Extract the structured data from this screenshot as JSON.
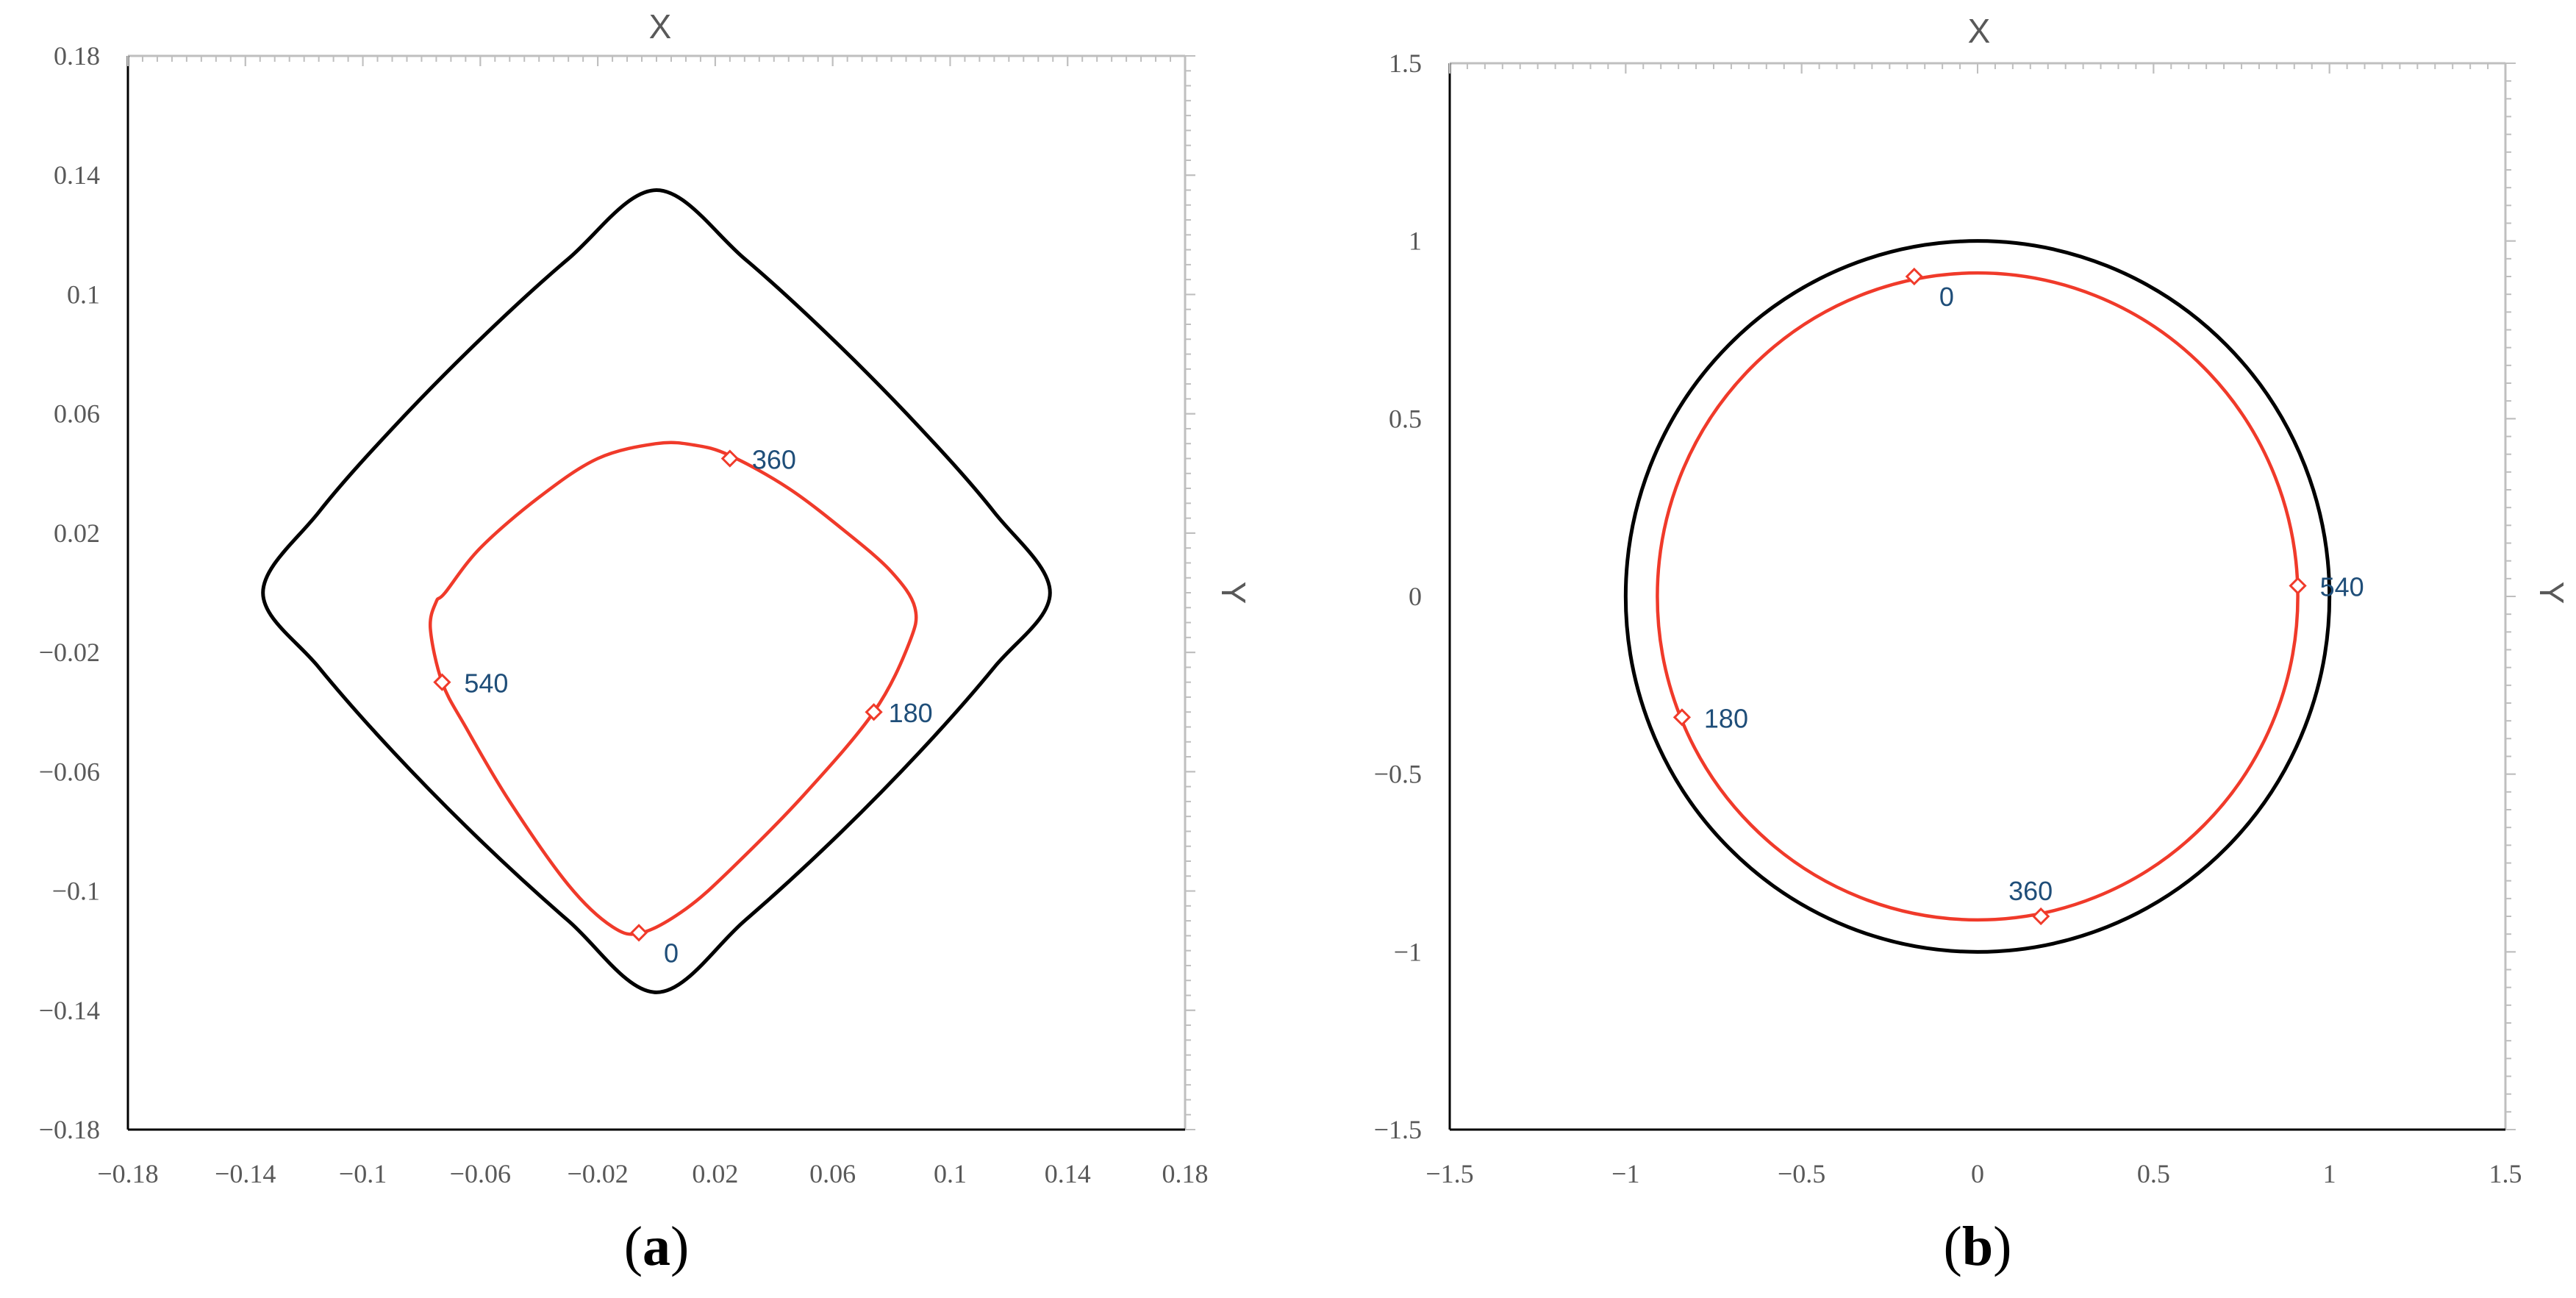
{
  "colors": {
    "boundary": "#000000",
    "trajectory": "#f03a2a",
    "axis_minor": "#bfbfbf",
    "tick_text": "#595959",
    "point_label": "#1f4e79"
  },
  "chart_data": [
    {
      "id": "a",
      "type": "line",
      "caption": "a",
      "xlabel_top": "X",
      "ylabel_right": "Y",
      "xlim": [
        -0.18,
        0.18
      ],
      "ylim": [
        -0.18,
        0.18
      ],
      "x_ticks": [
        -0.18,
        -0.14,
        -0.1,
        -0.06,
        -0.02,
        0.02,
        0.06,
        0.1,
        0.14,
        0.18
      ],
      "x_tick_labels": [
        "−0.18",
        "−0.14",
        "−0.1",
        "−0.06",
        "−0.02",
        "0.02",
        "0.06",
        "0.1",
        "0.14",
        "0.18"
      ],
      "y_ticks": [
        0.18,
        0.14,
        0.1,
        0.06,
        0.02,
        -0.02,
        -0.06,
        -0.1,
        -0.14,
        -0.18
      ],
      "y_tick_labels": [
        "0.18",
        "0.14",
        "0.1",
        "0.06",
        "0.02",
        "−0.02",
        "−0.06",
        "−0.1",
        "−0.14",
        "−0.18"
      ],
      "grid": false,
      "legend": "none",
      "series": [
        {
          "role": "boundary",
          "color": "#000000",
          "closed": true,
          "points": [
            [
              0.0,
              0.135
            ],
            [
              -0.03,
              0.112
            ],
            [
              -0.06,
              0.085
            ],
            [
              -0.09,
              0.055
            ],
            [
              -0.115,
              0.027
            ],
            [
              -0.134,
              0.0
            ],
            [
              -0.115,
              -0.025
            ],
            [
              -0.09,
              -0.053
            ],
            [
              -0.06,
              -0.083
            ],
            [
              -0.03,
              -0.11
            ],
            [
              0.0,
              -0.134
            ],
            [
              0.03,
              -0.11
            ],
            [
              0.06,
              -0.083
            ],
            [
              0.09,
              -0.053
            ],
            [
              0.115,
              -0.025
            ],
            [
              0.134,
              0.0
            ],
            [
              0.115,
              0.027
            ],
            [
              0.09,
              0.055
            ],
            [
              0.06,
              0.085
            ],
            [
              0.03,
              0.112
            ]
          ]
        },
        {
          "role": "trajectory",
          "color": "#f03a2a",
          "closed": true,
          "points": [
            [
              0.0,
              0.05
            ],
            [
              0.013,
              0.0495
            ],
            [
              0.025,
              0.046
            ],
            [
              0.045,
              0.035
            ],
            [
              0.065,
              0.02
            ],
            [
              0.08,
              0.007
            ],
            [
              0.088,
              -0.005
            ],
            [
              0.086,
              -0.017
            ],
            [
              0.074,
              -0.04
            ],
            [
              0.05,
              -0.068
            ],
            [
              0.025,
              -0.093
            ],
            [
              0.01,
              -0.106
            ],
            [
              -0.005,
              -0.114
            ],
            [
              -0.015,
              -0.112
            ],
            [
              -0.03,
              -0.098
            ],
            [
              -0.05,
              -0.07
            ],
            [
              -0.065,
              -0.045
            ],
            [
              -0.073,
              -0.03
            ],
            [
              -0.077,
              -0.012
            ],
            [
              -0.075,
              -0.003
            ],
            [
              -0.072,
              0.0
            ],
            [
              -0.06,
              0.015
            ],
            [
              -0.04,
              0.032
            ],
            [
              -0.02,
              0.045
            ]
          ]
        }
      ],
      "markers": [
        {
          "label": "0",
          "x": -0.006,
          "y": -0.114,
          "label_pos": "right-below"
        },
        {
          "label": "180",
          "x": 0.074,
          "y": -0.04,
          "label_pos": "right"
        },
        {
          "label": "360",
          "x": 0.025,
          "y": 0.045,
          "label_pos": "right"
        },
        {
          "label": "540",
          "x": -0.073,
          "y": -0.03,
          "label_pos": "right"
        }
      ]
    },
    {
      "id": "b",
      "type": "line",
      "caption": "b",
      "xlabel_top": "X",
      "ylabel_right": "Y",
      "xlim": [
        -1.5,
        1.5
      ],
      "ylim": [
        -1.5,
        1.5
      ],
      "x_ticks": [
        -1.5,
        -1,
        -0.5,
        0,
        0.5,
        1,
        1.5
      ],
      "x_tick_labels": [
        "−1.5",
        "−1",
        "−0.5",
        "0",
        "0.5",
        "1",
        "1.5"
      ],
      "y_ticks": [
        1.5,
        1,
        0.5,
        0,
        -0.5,
        -1,
        -1.5
      ],
      "y_tick_labels": [
        "1.5",
        "1",
        "0.5",
        "0",
        "−0.5",
        "−1",
        "−1.5"
      ],
      "grid": false,
      "legend": "none",
      "series": [
        {
          "role": "boundary",
          "color": "#000000",
          "shape": "circle",
          "center": [
            0,
            0
          ],
          "radius": 1.0
        },
        {
          "role": "trajectory",
          "color": "#f03a2a",
          "shape": "circle",
          "center": [
            0,
            0
          ],
          "radius": 0.91
        }
      ],
      "markers": [
        {
          "label": "0",
          "x": -0.18,
          "y": 0.9,
          "label_pos": "right-below"
        },
        {
          "label": "180",
          "x": -0.84,
          "y": -0.34,
          "label_pos": "right"
        },
        {
          "label": "360",
          "x": 0.18,
          "y": -0.9,
          "label_pos": "above"
        },
        {
          "label": "540",
          "x": 0.91,
          "y": 0.03,
          "label_pos": "right"
        }
      ]
    }
  ]
}
